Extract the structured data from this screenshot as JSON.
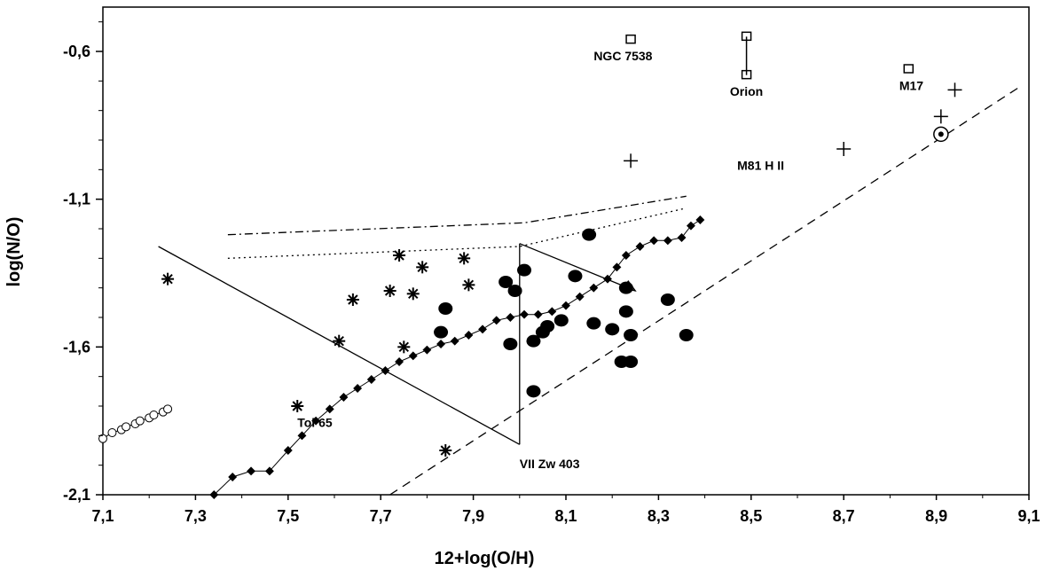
{
  "chart_data": {
    "type": "scatter",
    "title": "",
    "xlabel": "12+log(O/H)",
    "ylabel": "log(N/O)",
    "xlim": [
      7.1,
      9.1
    ],
    "ylim": [
      -2.1,
      -0.45
    ],
    "x_ticks": [
      7.1,
      7.3,
      7.5,
      7.7,
      7.9,
      8.1,
      8.3,
      8.5,
      8.7,
      8.9,
      9.1
    ],
    "x_tick_labels": [
      "7,1",
      "7,3",
      "7,5",
      "7,7",
      "7,9",
      "8,1",
      "8,3",
      "8,5",
      "8,7",
      "8,9",
      "9,1"
    ],
    "y_ticks": [
      -0.6,
      -1.1,
      -1.6,
      -2.1
    ],
    "y_tick_labels": [
      "-0,6",
      "-1,1",
      "-1,6",
      "-2,1"
    ],
    "grid": false,
    "series": [
      {
        "marker": "filled-circle",
        "points": [
          [
            7.84,
            -1.47
          ],
          [
            7.83,
            -1.55
          ],
          [
            7.97,
            -1.38
          ],
          [
            7.99,
            -1.41
          ],
          [
            8.01,
            -1.34
          ],
          [
            7.98,
            -1.59
          ],
          [
            8.05,
            -1.55
          ],
          [
            8.06,
            -1.53
          ],
          [
            8.03,
            -1.58
          ],
          [
            8.09,
            -1.51
          ],
          [
            8.12,
            -1.36
          ],
          [
            8.16,
            -1.52
          ],
          [
            8.15,
            -1.22
          ],
          [
            8.2,
            -1.54
          ],
          [
            8.23,
            -1.4
          ],
          [
            8.23,
            -1.48
          ],
          [
            8.24,
            -1.56
          ],
          [
            8.22,
            -1.65
          ],
          [
            8.24,
            -1.65
          ],
          [
            8.32,
            -1.44
          ],
          [
            8.36,
            -1.56
          ],
          [
            8.03,
            -1.75
          ]
        ]
      },
      {
        "marker": "asterisk",
        "points": [
          [
            7.24,
            -1.37
          ],
          [
            7.64,
            -1.44
          ],
          [
            7.72,
            -1.41
          ],
          [
            7.74,
            -1.29
          ],
          [
            7.77,
            -1.42
          ],
          [
            7.79,
            -1.33
          ],
          [
            7.88,
            -1.3
          ],
          [
            7.89,
            -1.39
          ],
          [
            7.75,
            -1.6
          ],
          [
            7.61,
            -1.58
          ],
          [
            7.52,
            -1.8
          ],
          [
            7.84,
            -1.95
          ]
        ]
      },
      {
        "marker": "plus",
        "points": [
          [
            8.24,
            -0.97
          ],
          [
            8.7,
            -0.93
          ],
          [
            8.91,
            -0.82
          ],
          [
            8.94,
            -0.73
          ]
        ]
      },
      {
        "marker": "open-square",
        "points": [
          [
            8.24,
            -0.56
          ],
          [
            8.49,
            -0.55
          ],
          [
            8.49,
            -0.68
          ],
          [
            8.84,
            -0.66
          ]
        ]
      },
      {
        "marker": "open-circle-line",
        "points": [
          [
            7.1,
            -1.91
          ],
          [
            7.12,
            -1.89
          ],
          [
            7.14,
            -1.88
          ],
          [
            7.15,
            -1.87
          ],
          [
            7.17,
            -1.86
          ],
          [
            7.18,
            -1.85
          ],
          [
            7.2,
            -1.84
          ],
          [
            7.21,
            -1.83
          ],
          [
            7.23,
            -1.82
          ],
          [
            7.24,
            -1.81
          ]
        ]
      },
      {
        "marker": "filled-diamond-line",
        "points": [
          [
            7.34,
            -2.1
          ],
          [
            7.38,
            -2.04
          ],
          [
            7.42,
            -2.02
          ],
          [
            7.46,
            -2.02
          ],
          [
            7.5,
            -1.95
          ],
          [
            7.53,
            -1.9
          ],
          [
            7.56,
            -1.85
          ],
          [
            7.59,
            -1.81
          ],
          [
            7.62,
            -1.77
          ],
          [
            7.65,
            -1.74
          ],
          [
            7.68,
            -1.71
          ],
          [
            7.71,
            -1.68
          ],
          [
            7.74,
            -1.65
          ],
          [
            7.77,
            -1.63
          ],
          [
            7.8,
            -1.61
          ],
          [
            7.83,
            -1.59
          ],
          [
            7.86,
            -1.58
          ],
          [
            7.89,
            -1.56
          ],
          [
            7.92,
            -1.54
          ],
          [
            7.95,
            -1.51
          ],
          [
            7.98,
            -1.5
          ],
          [
            8.01,
            -1.49
          ],
          [
            8.04,
            -1.49
          ],
          [
            8.07,
            -1.48
          ],
          [
            8.1,
            -1.46
          ],
          [
            8.13,
            -1.43
          ],
          [
            8.16,
            -1.4
          ],
          [
            8.19,
            -1.37
          ],
          [
            8.21,
            -1.33
          ],
          [
            8.23,
            -1.29
          ],
          [
            8.26,
            -1.26
          ],
          [
            8.29,
            -1.24
          ],
          [
            8.32,
            -1.24
          ],
          [
            8.35,
            -1.23
          ],
          [
            8.37,
            -1.19
          ],
          [
            8.39,
            -1.17
          ]
        ]
      },
      {
        "marker": "target",
        "points": [
          [
            8.91,
            -0.88
          ]
        ]
      }
    ],
    "lines": [
      {
        "style": "solid",
        "points": [
          [
            7.22,
            -1.26
          ],
          [
            8.0,
            -1.93
          ]
        ]
      },
      {
        "style": "solid",
        "points": [
          [
            8.0,
            -1.93
          ],
          [
            8.0,
            -1.25
          ]
        ]
      },
      {
        "style": "solid",
        "points": [
          [
            8.0,
            -1.25
          ],
          [
            8.25,
            -1.41
          ]
        ]
      },
      {
        "style": "dashed",
        "points": [
          [
            7.72,
            -2.1
          ],
          [
            9.08,
            -0.72
          ]
        ]
      },
      {
        "style": "dash-dot",
        "points": [
          [
            7.37,
            -1.22
          ],
          [
            8.01,
            -1.18
          ],
          [
            8.36,
            -1.09
          ]
        ]
      },
      {
        "style": "dotted",
        "points": [
          [
            7.37,
            -1.3
          ],
          [
            8.0,
            -1.26
          ],
          [
            8.36,
            -1.13
          ]
        ]
      }
    ],
    "annotations": [
      {
        "text": "NGC 7538",
        "x": 8.16,
        "y": -0.63
      },
      {
        "text": "Orion",
        "x": 8.49,
        "y": -0.75
      },
      {
        "text": "M17",
        "x": 8.82,
        "y": -0.73
      },
      {
        "text": "M81 H II",
        "x": 8.47,
        "y": -1.0
      },
      {
        "text": "Tol 65",
        "x": 7.52,
        "y": -1.87
      },
      {
        "text": "VII Zw 403",
        "x": 8.0,
        "y": -2.01
      }
    ]
  }
}
